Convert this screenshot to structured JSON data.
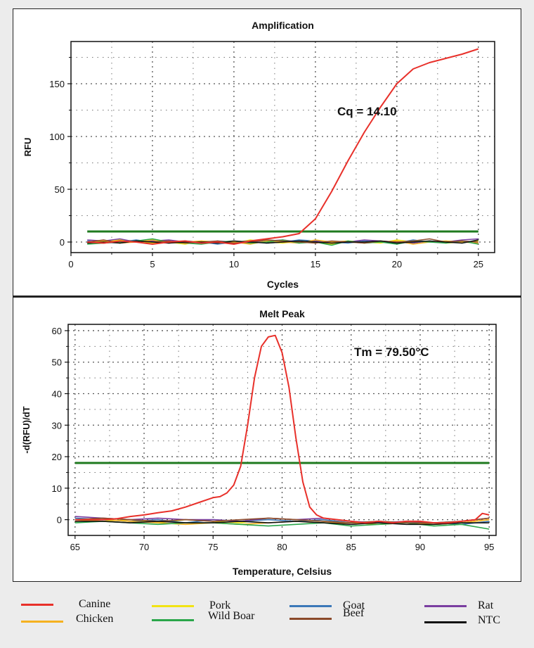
{
  "chart_data": [
    {
      "type": "line",
      "title": "Amplification",
      "xlabel": "Cycles",
      "ylabel": "RFU",
      "xlim": [
        0,
        26
      ],
      "ylim": [
        -10,
        190
      ],
      "xticks": [
        0,
        5,
        10,
        15,
        20,
        25
      ],
      "yticks": [
        0,
        50,
        100,
        150
      ],
      "grid": true,
      "annotation": "Cq = 14.10",
      "threshold": 10,
      "series": [
        {
          "name": "Canine",
          "x": [
            1,
            2,
            3,
            4,
            5,
            6,
            7,
            8,
            9,
            10,
            11,
            12,
            13,
            14,
            15,
            16,
            17,
            18,
            19,
            20,
            21,
            22,
            23,
            24,
            25
          ],
          "values": [
            0,
            -1,
            1,
            0,
            -2,
            0,
            1,
            -1,
            0,
            -2,
            1,
            3,
            5,
            8,
            22,
            48,
            77,
            104,
            128,
            150,
            164,
            170,
            174,
            178,
            183
          ]
        },
        {
          "name": "Pork",
          "x": [
            1,
            2,
            3,
            4,
            5,
            6,
            7,
            8,
            9,
            10,
            11,
            12,
            13,
            14,
            15,
            16,
            17,
            18,
            19,
            20,
            21,
            22,
            23,
            24,
            25
          ],
          "values": [
            -1,
            0,
            2,
            1,
            -1,
            0,
            -2,
            1,
            0,
            -1,
            2,
            0,
            -1,
            1,
            0,
            -2,
            1,
            0,
            -1,
            2,
            0,
            1,
            -1,
            0,
            1
          ]
        },
        {
          "name": "Goat",
          "x": [
            1,
            2,
            3,
            4,
            5,
            6,
            7,
            8,
            9,
            10,
            11,
            12,
            13,
            14,
            15,
            16,
            17,
            18,
            19,
            20,
            21,
            22,
            23,
            24,
            25
          ],
          "values": [
            1,
            -1,
            0,
            2,
            0,
            -1,
            1,
            0,
            -2,
            0,
            1,
            -1,
            0,
            2,
            1,
            0,
            -1,
            1,
            0,
            -1,
            2,
            0,
            1,
            -1,
            2
          ]
        },
        {
          "name": "Rat",
          "x": [
            1,
            2,
            3,
            4,
            5,
            6,
            7,
            8,
            9,
            10,
            11,
            12,
            13,
            14,
            15,
            16,
            17,
            18,
            19,
            20,
            21,
            22,
            23,
            24,
            25
          ],
          "values": [
            2,
            1,
            3,
            0,
            1,
            2,
            0,
            -1,
            1,
            0,
            -1,
            1,
            2,
            0,
            1,
            -1,
            0,
            2,
            1,
            0,
            -1,
            1,
            0,
            2,
            3
          ]
        },
        {
          "name": "Chicken",
          "x": [
            1,
            2,
            3,
            4,
            5,
            6,
            7,
            8,
            9,
            10,
            11,
            12,
            13,
            14,
            15,
            16,
            17,
            18,
            19,
            20,
            21,
            22,
            23,
            24,
            25
          ],
          "values": [
            0,
            1,
            -1,
            0,
            2,
            -1,
            0,
            1,
            -1,
            0,
            -2,
            1,
            0,
            -1,
            2,
            0,
            1,
            -1,
            0,
            1,
            -2,
            0,
            1,
            0,
            -1
          ]
        },
        {
          "name": "Wild Boar",
          "x": [
            1,
            2,
            3,
            4,
            5,
            6,
            7,
            8,
            9,
            10,
            11,
            12,
            13,
            14,
            15,
            16,
            17,
            18,
            19,
            20,
            21,
            22,
            23,
            24,
            25
          ],
          "values": [
            -2,
            -1,
            0,
            1,
            3,
            0,
            -1,
            -2,
            0,
            1,
            -1,
            0,
            2,
            -1,
            0,
            -3,
            1,
            -1,
            0,
            -2,
            1,
            0,
            -1,
            1,
            -2
          ]
        },
        {
          "name": "Beef",
          "x": [
            1,
            2,
            3,
            4,
            5,
            6,
            7,
            8,
            9,
            10,
            11,
            12,
            13,
            14,
            15,
            16,
            17,
            18,
            19,
            20,
            21,
            22,
            23,
            24,
            25
          ],
          "values": [
            0,
            2,
            -1,
            1,
            0,
            1,
            -1,
            0,
            1,
            -1,
            0,
            2,
            1,
            0,
            -1,
            1,
            0,
            -1,
            1,
            0,
            1,
            3,
            0,
            1,
            0
          ]
        },
        {
          "name": "NTC",
          "x": [
            1,
            2,
            3,
            4,
            5,
            6,
            7,
            8,
            9,
            10,
            11,
            12,
            13,
            14,
            15,
            16,
            17,
            18,
            19,
            20,
            21,
            22,
            23,
            24,
            25
          ],
          "values": [
            -1,
            0,
            -1,
            1,
            0,
            -1,
            0,
            0,
            -1,
            1,
            0,
            -1,
            0,
            1,
            0,
            -1,
            0,
            0,
            1,
            -1,
            0,
            1,
            0,
            -1,
            2
          ]
        }
      ]
    },
    {
      "type": "line",
      "title": "Melt Peak",
      "xlabel": "Temperature, Celsius",
      "ylabel": "-d(RFU)/dT",
      "xlim": [
        64.5,
        95.5
      ],
      "ylim": [
        -5,
        62
      ],
      "xticks": [
        65,
        70,
        75,
        80,
        85,
        90,
        95
      ],
      "yticks": [
        0,
        10,
        20,
        30,
        40,
        50,
        60
      ],
      "grid": true,
      "annotation": "Tm = 79.50°C",
      "threshold": 18,
      "series": [
        {
          "name": "Canine",
          "x": [
            65,
            66,
            67,
            68,
            69,
            70,
            71,
            72,
            73,
            74,
            75,
            75.5,
            76,
            76.5,
            77,
            77.5,
            78,
            78.5,
            79,
            79.5,
            80,
            80.5,
            81,
            81.5,
            82,
            82.5,
            83,
            84,
            85,
            86,
            87,
            88,
            89,
            90,
            91,
            92,
            93,
            94,
            94.5,
            95
          ],
          "values": [
            0,
            0,
            0,
            0.3,
            1,
            1.5,
            2.2,
            2.8,
            4,
            5.5,
            7,
            7.3,
            8.5,
            11,
            17,
            30,
            45,
            55,
            58,
            58.5,
            53,
            42,
            26,
            12,
            4,
            1.5,
            0.5,
            0,
            -0.5,
            -1,
            -0.5,
            -1,
            -0.5,
            -0.5,
            -1,
            -1,
            -0.5,
            0,
            2,
            1.5
          ]
        },
        {
          "name": "Pork",
          "x": [
            65,
            67,
            69,
            71,
            73,
            75,
            77,
            79,
            81,
            83,
            85,
            87,
            89,
            91,
            93,
            95
          ],
          "values": [
            0,
            -0.5,
            0,
            -1,
            0,
            -0.5,
            -1,
            0.5,
            0,
            -0.5,
            -1,
            -0.5,
            -1,
            -1.5,
            -1,
            0
          ]
        },
        {
          "name": "Goat",
          "x": [
            65,
            67,
            69,
            71,
            73,
            75,
            77,
            79,
            81,
            83,
            85,
            87,
            89,
            91,
            93,
            95
          ],
          "values": [
            0.5,
            0,
            -0.5,
            0,
            -1,
            0,
            -0.5,
            0,
            -0.5,
            0,
            -1,
            -0.5,
            -1,
            -1,
            -1.5,
            -0.5
          ]
        },
        {
          "name": "Rat",
          "x": [
            65,
            67,
            69,
            71,
            73,
            75,
            77,
            79,
            81,
            83,
            85,
            87,
            89,
            91,
            93,
            95
          ],
          "values": [
            1,
            0.5,
            0,
            0.5,
            0,
            0,
            -0.5,
            0.5,
            0,
            0.5,
            -0.5,
            -1,
            -0.5,
            -1,
            -0.5,
            0.5
          ]
        },
        {
          "name": "Chicken",
          "x": [
            65,
            67,
            69,
            71,
            73,
            75,
            77,
            79,
            81,
            83,
            85,
            87,
            89,
            91,
            93,
            95
          ],
          "values": [
            -0.5,
            0,
            -0.5,
            -1,
            -1.5,
            -1,
            -1.5,
            -1,
            -0.5,
            -1,
            -1,
            -1.5,
            -1,
            -1.5,
            -1,
            0
          ]
        },
        {
          "name": "Wild Boar",
          "x": [
            65,
            67,
            69,
            71,
            73,
            75,
            77,
            79,
            81,
            83,
            85,
            87,
            89,
            91,
            93,
            95
          ],
          "values": [
            -1,
            -0.5,
            -1,
            -1.5,
            -1,
            -1,
            -1.5,
            -2,
            -1.5,
            -1,
            -2,
            -1.5,
            -1,
            -2,
            -1.5,
            -3
          ]
        },
        {
          "name": "Beef",
          "x": [
            65,
            67,
            69,
            71,
            73,
            75,
            77,
            79,
            81,
            83,
            85,
            87,
            89,
            91,
            93,
            95
          ],
          "values": [
            0,
            0.5,
            0,
            -0.5,
            0,
            -0.5,
            0,
            0.5,
            0,
            -0.5,
            -1,
            -0.5,
            -1,
            -1,
            -0.5,
            0.5
          ]
        },
        {
          "name": "NTC",
          "x": [
            65,
            67,
            69,
            71,
            73,
            75,
            77,
            79,
            81,
            83,
            85,
            87,
            89,
            91,
            93,
            95
          ],
          "values": [
            -0.5,
            -0.5,
            -1,
            -0.5,
            -1,
            -1,
            -0.5,
            -1,
            -0.5,
            -1,
            -1.5,
            -1,
            -1.5,
            -1.5,
            -1,
            -1
          ]
        }
      ]
    }
  ],
  "legend": [
    {
      "name": "Canine",
      "color": "#e8302a"
    },
    {
      "name": "Pork",
      "color": "#f2e313"
    },
    {
      "name": "Goat",
      "color": "#3b78b8"
    },
    {
      "name": "Rat",
      "color": "#7a3ea0"
    },
    {
      "name": "Chicken",
      "color": "#f5b120"
    },
    {
      "name": "Wild Boar",
      "color": "#2aa64a"
    },
    {
      "name": "Beef",
      "color": "#8b4a2b"
    },
    {
      "name": "NTC",
      "color": "#111111"
    }
  ],
  "threshold_color": "#1f7a1f"
}
